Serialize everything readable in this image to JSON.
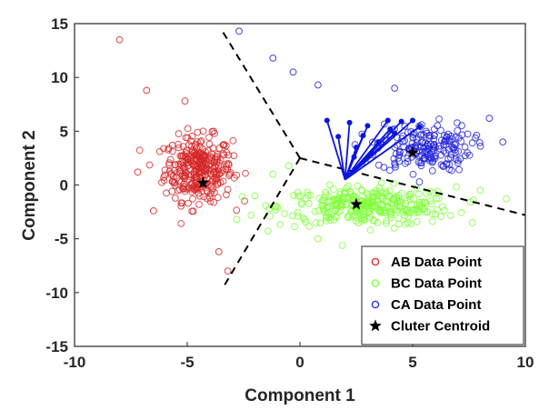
{
  "chart_data": {
    "type": "scatter",
    "title": "",
    "xlabel": "Component 1",
    "ylabel": "Component 2",
    "xlim": [
      -10,
      10
    ],
    "ylim": [
      -15,
      15
    ],
    "xticks": [
      -10,
      -5,
      0,
      5,
      10
    ],
    "yticks": [
      -15,
      -10,
      -5,
      0,
      5,
      10,
      15
    ],
    "grid": false,
    "legend_position": "bottom-right",
    "series": [
      {
        "name": "AB Data Point",
        "marker": "open-circle",
        "color": "#d62728",
        "cluster": {
          "center": [
            -4.5,
            1.5
          ],
          "spread": [
            1.0,
            2.0
          ],
          "count": 320
        },
        "outliers": [
          [
            -8.0,
            13.5
          ],
          [
            -6.8,
            8.8
          ],
          [
            -5.1,
            7.8
          ],
          [
            -3.6,
            -6.2
          ],
          [
            -3.2,
            -8.0
          ],
          [
            -7.2,
            1.2
          ],
          [
            -6.5,
            -2.4
          ]
        ]
      },
      {
        "name": "BC Data Point",
        "marker": "open-circle",
        "color": "#7fff3a",
        "cluster": {
          "center": [
            3.0,
            -2.0
          ],
          "spread": [
            2.6,
            1.2
          ],
          "count": 330
        },
        "outliers": [
          [
            -1.2,
            1.0
          ],
          [
            -0.5,
            1.8
          ],
          [
            0.8,
            -5.0
          ],
          [
            -2.0,
            -1.0
          ],
          [
            -2.8,
            -3.2
          ],
          [
            8.0,
            -0.5
          ]
        ]
      },
      {
        "name": "CA Data Point",
        "marker": "open-circle",
        "color": "#2323d8",
        "cluster": {
          "center": [
            5.5,
            3.5
          ],
          "spread": [
            1.4,
            1.5
          ],
          "count": 190
        },
        "outliers": [
          [
            -2.7,
            14.3
          ],
          [
            -1.2,
            11.8
          ],
          [
            -0.3,
            10.5
          ],
          [
            0.8,
            9.3
          ],
          [
            9.0,
            4.0
          ],
          [
            8.4,
            6.2
          ],
          [
            4.2,
            9.0
          ]
        ]
      },
      {
        "name": "Cluter Centroid",
        "marker": "star",
        "color": "#000000",
        "values": [
          [
            -4.3,
            0.2
          ],
          [
            2.5,
            -1.8
          ],
          [
            5.0,
            3.0
          ]
        ]
      }
    ],
    "decision_boundary_lines": [
      {
        "from": [
          0.0,
          2.5
        ],
        "to": [
          -3.5,
          14.5
        ]
      },
      {
        "from": [
          0.0,
          2.5
        ],
        "to": [
          10.0,
          -2.8
        ]
      },
      {
        "from": [
          0.0,
          2.5
        ],
        "to": [
          -3.4,
          -9.5
        ]
      }
    ],
    "highlighted_links": {
      "color": "#0a14e0",
      "from": [
        2.0,
        0.5
      ],
      "to": [
        [
          1.2,
          6.0
        ],
        [
          2.2,
          5.8
        ],
        [
          2.5,
          3.5
        ],
        [
          3.0,
          5.5
        ],
        [
          3.5,
          4.0
        ],
        [
          4.0,
          5.2
        ],
        [
          4.5,
          5.9
        ],
        [
          5.0,
          6.0
        ],
        [
          3.2,
          2.9
        ],
        [
          2.8,
          4.6
        ],
        [
          4.2,
          4.8
        ],
        [
          3.9,
          6.0
        ],
        [
          1.7,
          4.5
        ],
        [
          5.3,
          5.4
        ],
        [
          2.4,
          2.6
        ]
      ]
    }
  }
}
